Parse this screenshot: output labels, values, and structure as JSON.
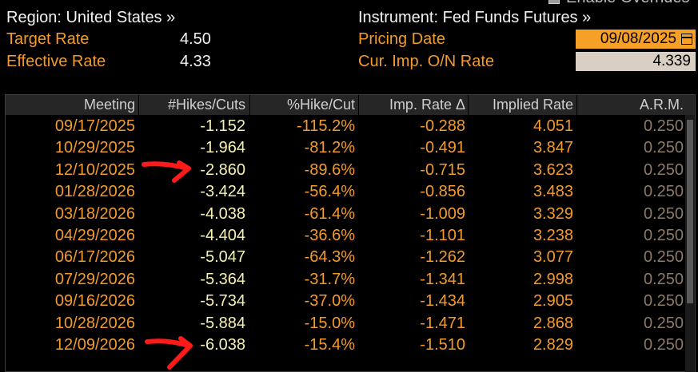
{
  "header": {
    "region_label": "Region: United States »",
    "instrument_label": "Instrument: Fed Funds Futures »",
    "override_label": "Enable Overrides",
    "target_rate_label": "Target Rate",
    "target_rate_value": "4.50",
    "effective_rate_label": "Effective Rate",
    "effective_rate_value": "4.33",
    "pricing_date_label": "Pricing Date",
    "pricing_date_value": "09/08/2025",
    "cur_imp_label": "Cur. Imp. O/N Rate",
    "cur_imp_value": "4.339"
  },
  "table": {
    "columns": [
      "Meeting",
      "#Hikes/Cuts",
      "%Hike/Cut",
      "Imp. Rate Δ",
      "Implied Rate",
      "A.R.M."
    ],
    "rows": [
      {
        "meeting": "09/17/2025",
        "hikes": "-1.152",
        "pct": "-115.2%",
        "imp_delta": "-0.288",
        "implied": "4.051",
        "arm": "0.250"
      },
      {
        "meeting": "10/29/2025",
        "hikes": "-1.964",
        "pct": "-81.2%",
        "imp_delta": "-0.491",
        "implied": "3.847",
        "arm": "0.250"
      },
      {
        "meeting": "12/10/2025",
        "hikes": "-2.860",
        "pct": "-89.6%",
        "imp_delta": "-0.715",
        "implied": "3.623",
        "arm": "0.250"
      },
      {
        "meeting": "01/28/2026",
        "hikes": "-3.424",
        "pct": "-56.4%",
        "imp_delta": "-0.856",
        "implied": "3.483",
        "arm": "0.250"
      },
      {
        "meeting": "03/18/2026",
        "hikes": "-4.038",
        "pct": "-61.4%",
        "imp_delta": "-1.009",
        "implied": "3.329",
        "arm": "0.250"
      },
      {
        "meeting": "04/29/2026",
        "hikes": "-4.404",
        "pct": "-36.6%",
        "imp_delta": "-1.101",
        "implied": "3.238",
        "arm": "0.250"
      },
      {
        "meeting": "06/17/2026",
        "hikes": "-5.047",
        "pct": "-64.3%",
        "imp_delta": "-1.262",
        "implied": "3.077",
        "arm": "0.250"
      },
      {
        "meeting": "07/29/2026",
        "hikes": "-5.364",
        "pct": "-31.7%",
        "imp_delta": "-1.341",
        "implied": "2.998",
        "arm": "0.250"
      },
      {
        "meeting": "09/16/2026",
        "hikes": "-5.734",
        "pct": "-37.0%",
        "imp_delta": "-1.434",
        "implied": "2.905",
        "arm": "0.250"
      },
      {
        "meeting": "10/28/2026",
        "hikes": "-5.884",
        "pct": "-15.0%",
        "imp_delta": "-1.471",
        "implied": "2.868",
        "arm": "0.250"
      },
      {
        "meeting": "12/09/2026",
        "hikes": "-6.038",
        "pct": "-15.4%",
        "imp_delta": "-1.510",
        "implied": "2.829",
        "arm": "0.250"
      }
    ]
  },
  "annotations": {
    "arrow_color": "#ff1a1a",
    "arrow_rows": [
      "12/10/2025",
      "12/09/2026"
    ]
  },
  "colors": {
    "orange": "#f39a2d",
    "date_field_bg": "#f7a027",
    "hikes_text": "#f7f0b3",
    "arm_text": "#8d7a68"
  }
}
